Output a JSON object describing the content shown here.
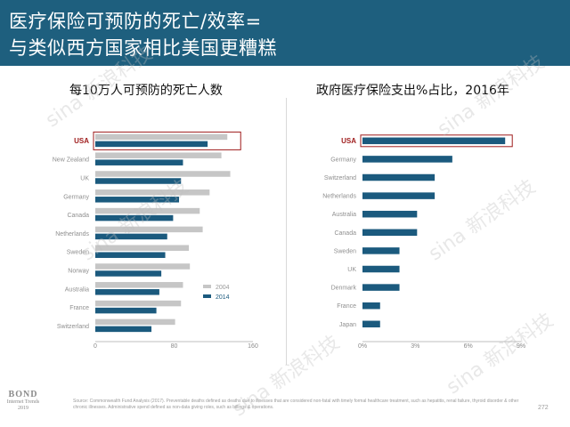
{
  "header": {
    "title_line1": "医疗保险可预防的死亡/效率=",
    "title_line2": "与类似西方国家相比美国更糟糕",
    "bg_color": "#1e5f7e"
  },
  "watermark": "sina 新浪科技",
  "footer": {
    "logo_main": "BOND",
    "logo_sub1": "Internet Trends",
    "logo_sub2": "2019",
    "source": "Source: Commonwealth Fund Analysis (2017). Preventable deaths defined as deaths due to illnesses that are considered non-fatal with timely formal healthcare treatment, such as hepatitis, renal failure, thyroid disorder & other chronic illnesses. Administrative spend defined as non-data giving roles, such as billings & operations.",
    "page": "272"
  },
  "chart_data": [
    {
      "type": "bar",
      "orientation": "horizontal",
      "title": "每10万人可预防的死亡人数",
      "categories": [
        "USA",
        "New Zealand",
        "UK",
        "Germany",
        "Canada",
        "Netherlands",
        "Sweden",
        "Norway",
        "Australia",
        "France",
        "Switzerland"
      ],
      "series": [
        {
          "name": "2004",
          "color": "#c6c6c6",
          "values": [
            134,
            128,
            137,
            116,
            106,
            109,
            95,
            96,
            89,
            87,
            81
          ]
        },
        {
          "name": "2014",
          "color": "#1b5a7e",
          "values": [
            114,
            89,
            87,
            85,
            79,
            73,
            71,
            67,
            65,
            62,
            57
          ]
        }
      ],
      "highlight": "USA",
      "highlight_color": "#9e1b1b",
      "xlim": [
        0,
        160
      ],
      "xticks": [
        "0",
        "80",
        "160"
      ],
      "grid": false,
      "legend": "bottom-right"
    },
    {
      "type": "bar",
      "orientation": "horizontal",
      "title": "政府医疗保险支出%占比，2016年",
      "categories": [
        "USA",
        "Germany",
        "Switzerland",
        "Netherlands",
        "Australia",
        "Canada",
        "Sweden",
        "UK",
        "Denmark",
        "France",
        "Japan"
      ],
      "series": [
        {
          "color": "#1b5a7e",
          "values": [
            8.1,
            5.1,
            4.1,
            4.1,
            3.1,
            3.1,
            2.1,
            2.1,
            2.1,
            1.0,
            1.0
          ]
        }
      ],
      "highlight": "USA",
      "highlight_color": "#9e1b1b",
      "xlim": [
        0,
        9
      ],
      "xticks": [
        "0%",
        "3%",
        "6%",
        "9%"
      ],
      "grid": false
    }
  ]
}
